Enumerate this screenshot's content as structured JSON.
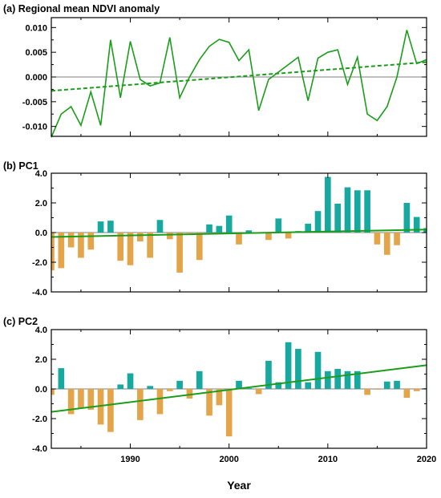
{
  "figure": {
    "xlabel": "Year"
  },
  "chart_data": [
    {
      "type": "line",
      "title": "(a) Regional mean NDVI anomaly",
      "xlim": [
        1982,
        2020
      ],
      "ylim": [
        -0.012,
        0.012
      ],
      "yticks": [
        "0.010",
        "0.005",
        "0.000",
        "-0.005",
        "-0.010"
      ],
      "ytick_values": [
        0.01,
        0.005,
        0.0,
        -0.005,
        -0.01
      ],
      "x": [
        1982,
        1983,
        1984,
        1985,
        1986,
        1987,
        1988,
        1989,
        1990,
        1991,
        1992,
        1993,
        1994,
        1995,
        1996,
        1997,
        1998,
        1999,
        2000,
        2001,
        2002,
        2003,
        2004,
        2005,
        2006,
        2007,
        2008,
        2009,
        2010,
        2011,
        2012,
        2013,
        2014,
        2015,
        2016,
        2017,
        2018,
        2019,
        2020
      ],
      "series": [
        {
          "values": [
            -0.0122,
            -0.0075,
            -0.006,
            -0.0098,
            -0.003,
            -0.0098,
            0.0075,
            -0.0042,
            0.0072,
            -0.0005,
            -0.0018,
            -0.0012,
            0.008,
            -0.0042,
            0.0,
            0.0035,
            0.0062,
            0.0076,
            0.007,
            0.0033,
            0.0055,
            -0.0068,
            -0.0005,
            0.001,
            0.0025,
            0.004,
            -0.0048,
            0.0038,
            0.005,
            0.0055,
            -0.0015,
            0.004,
            -0.0075,
            -0.0088,
            -0.006,
            0.0,
            0.0095,
            0.0027,
            0.0035
          ],
          "color": "#1a9e1a"
        },
        {
          "trend": [
            -0.0028,
            0.003
          ],
          "style": "dashed",
          "color": "#1a9e1a"
        }
      ],
      "zero_line": true
    },
    {
      "type": "bar",
      "title": "(b) PC1",
      "xlim": [
        1982,
        2020
      ],
      "ylim": [
        -4.0,
        4.0
      ],
      "yticks": [
        "4.0",
        "2.0",
        "0.0",
        "-2.0",
        "-4.0"
      ],
      "ytick_values": [
        4,
        2,
        0,
        -2,
        -4
      ],
      "x": [
        1982,
        1983,
        1984,
        1985,
        1986,
        1987,
        1988,
        1989,
        1990,
        1991,
        1992,
        1993,
        1994,
        1995,
        1996,
        1997,
        1998,
        1999,
        2000,
        2001,
        2002,
        2003,
        2004,
        2005,
        2006,
        2007,
        2008,
        2009,
        2010,
        2011,
        2012,
        2013,
        2014,
        2015,
        2016,
        2017,
        2018,
        2019,
        2020
      ],
      "values": [
        -2.55,
        -2.4,
        -1.0,
        -1.7,
        -1.15,
        0.75,
        0.8,
        -1.9,
        -2.2,
        -0.6,
        -1.7,
        0.85,
        -0.45,
        -2.7,
        -0.05,
        -1.85,
        0.55,
        0.45,
        1.15,
        -0.8,
        0.15,
        -0.05,
        -0.5,
        0.95,
        -0.4,
        0.1,
        0.6,
        1.45,
        3.75,
        1.95,
        3.05,
        2.85,
        2.85,
        -0.8,
        -1.5,
        -0.85,
        2.0,
        1.05,
        0.3
      ],
      "trend": [
        -0.3,
        0.2
      ],
      "colors": {
        "positive": "#17a9a0",
        "negative": "#e4a54a",
        "trend": "#1a9e1a"
      }
    },
    {
      "type": "bar",
      "title": "(c) PC2",
      "xlim": [
        1982,
        2020
      ],
      "ylim": [
        -4.0,
        4.0
      ],
      "yticks": [
        "4.0",
        "2.0",
        "0.0",
        "-2.0",
        "-4.0"
      ],
      "ytick_values": [
        4,
        2,
        0,
        -2,
        -4
      ],
      "xticks": [
        "1990",
        "2000",
        "2010",
        "2020"
      ],
      "xtick_values": [
        1990,
        2000,
        2010,
        2020
      ],
      "x": [
        1982,
        1983,
        1984,
        1985,
        1986,
        1987,
        1988,
        1989,
        1990,
        1991,
        1992,
        1993,
        1994,
        1995,
        1996,
        1997,
        1998,
        1999,
        2000,
        2001,
        2002,
        2003,
        2004,
        2005,
        2006,
        2007,
        2008,
        2009,
        2010,
        2011,
        2012,
        2013,
        2014,
        2015,
        2016,
        2017,
        2018,
        2019,
        2020
      ],
      "values": [
        -0.4,
        1.4,
        -1.7,
        -1.3,
        -1.4,
        -2.4,
        -2.9,
        0.3,
        1.05,
        -2.1,
        0.2,
        -1.7,
        -0.15,
        0.55,
        -0.65,
        1.2,
        -1.8,
        -1.1,
        -3.2,
        0.55,
        0.05,
        -0.35,
        1.9,
        0.45,
        3.15,
        2.7,
        0.45,
        2.5,
        1.2,
        1.35,
        1.2,
        1.2,
        -0.4,
        -0.05,
        0.5,
        0.55,
        -0.6,
        -0.15,
        0.05
      ],
      "trend": [
        -1.55,
        1.6
      ],
      "colors": {
        "positive": "#17a9a0",
        "negative": "#e4a54a",
        "trend": "#1a9e1a"
      }
    }
  ]
}
